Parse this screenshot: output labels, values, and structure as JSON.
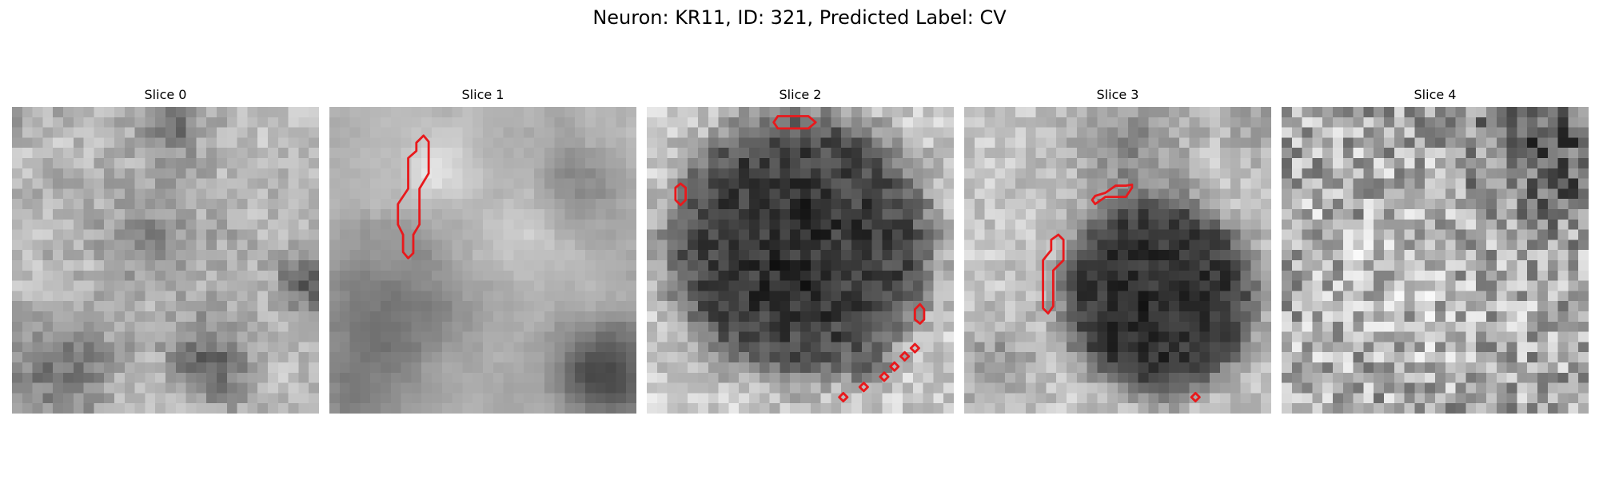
{
  "figure": {
    "title": "Neuron: KR11, ID: 321, Predicted Label: CV"
  },
  "panels": [
    {
      "title": "Slice 0"
    },
    {
      "title": "Slice 1"
    },
    {
      "title": "Slice 2"
    },
    {
      "title": "Slice 3"
    },
    {
      "title": "Slice 4"
    }
  ],
  "style": {
    "contour_color": "#e8191c",
    "colormap": "grayscale"
  }
}
